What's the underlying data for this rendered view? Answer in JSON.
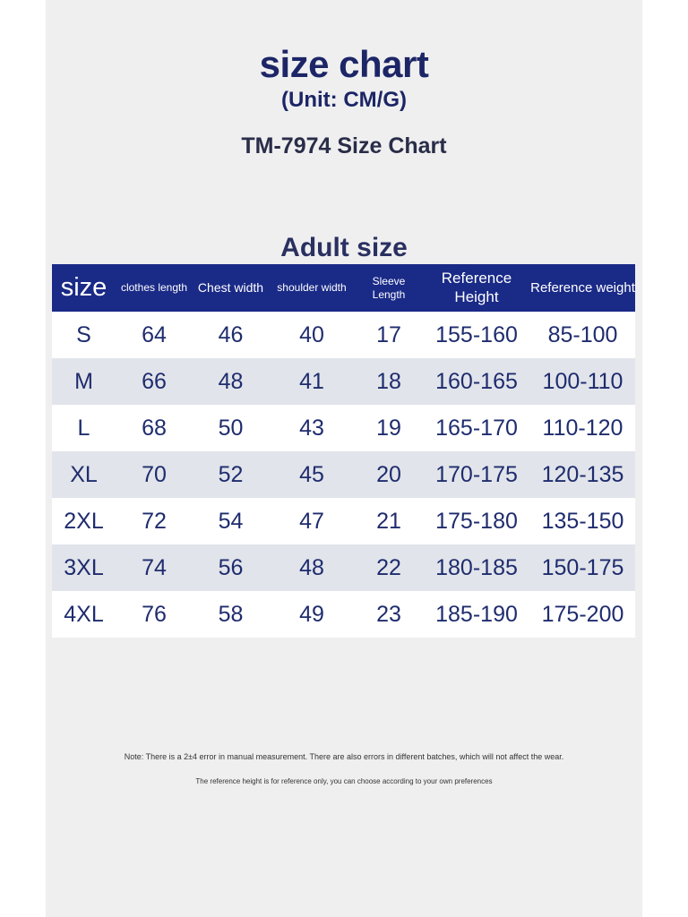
{
  "header": {
    "title": "size chart",
    "unit": "(Unit: CM/G)",
    "model": "TM-7974 Size Chart",
    "section": "Adult size"
  },
  "table": {
    "columns": [
      "size",
      "clothes length",
      "Chest width",
      "shoulder width",
      "Sleeve Length",
      "Reference Height",
      "Reference weight"
    ],
    "rows": [
      [
        "S",
        "64",
        "46",
        "40",
        "17",
        "155-160",
        "85-100"
      ],
      [
        "M",
        "66",
        "48",
        "41",
        "18",
        "160-165",
        "100-110"
      ],
      [
        "L",
        "68",
        "50",
        "43",
        "19",
        "165-170",
        "110-120"
      ],
      [
        "XL",
        "70",
        "52",
        "45",
        "20",
        "170-175",
        "120-135"
      ],
      [
        "2XL",
        "72",
        "54",
        "47",
        "21",
        "175-180",
        "135-150"
      ],
      [
        "3XL",
        "74",
        "56",
        "48",
        "22",
        "180-185",
        "150-175"
      ],
      [
        "4XL",
        "76",
        "58",
        "49",
        "23",
        "185-190",
        "175-200"
      ]
    ]
  },
  "notes": {
    "line1": "Note: There is a 2±4 error in manual measurement. There are also errors in different batches, which will not affect the wear.",
    "line2": "The reference height is for reference only, you can choose according to your own preferences"
  },
  "colors": {
    "header_bg": "#1a2a87",
    "title_text": "#1c2666",
    "stripe": "#e1e4ea",
    "panel_bg": "#efeff0"
  }
}
